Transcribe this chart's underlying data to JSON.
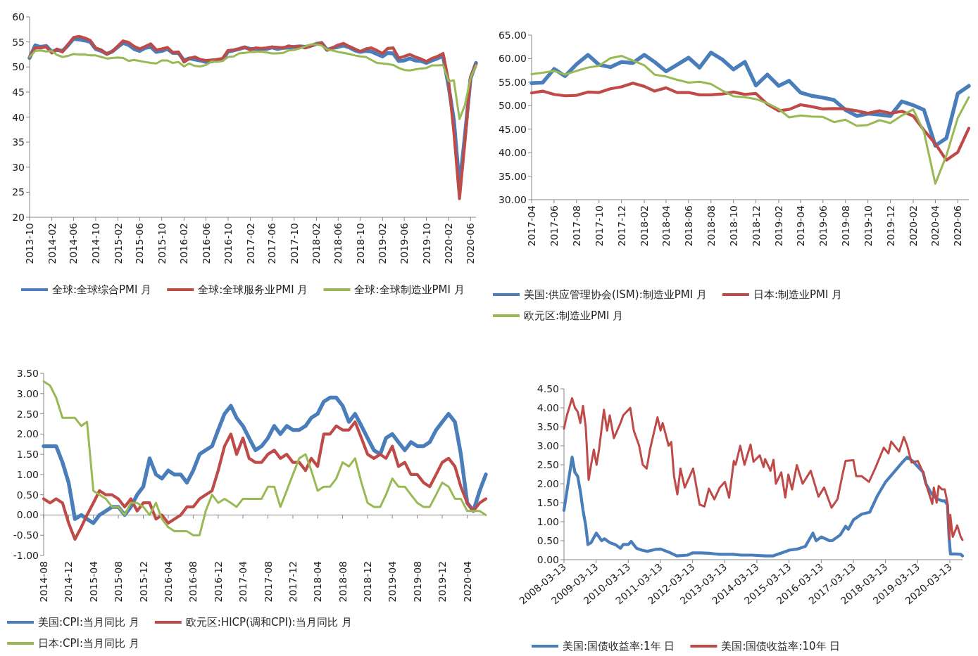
{
  "chart_data": [
    {
      "type": "line",
      "legend": "bottom",
      "x": [
        "2013-10",
        "2013-11",
        "2013-12",
        "2014-01",
        "2014-02",
        "2014-03",
        "2014-04",
        "2014-05",
        "2014-06",
        "2014-07",
        "2014-08",
        "2014-09",
        "2014-10",
        "2014-11",
        "2014-12",
        "2015-01",
        "2015-02",
        "2015-03",
        "2015-04",
        "2015-05",
        "2015-06",
        "2015-07",
        "2015-08",
        "2015-09",
        "2015-10",
        "2015-11",
        "2015-12",
        "2016-01",
        "2016-02",
        "2016-03",
        "2016-04",
        "2016-05",
        "2016-06",
        "2016-07",
        "2016-08",
        "2016-09",
        "2016-10",
        "2016-11",
        "2016-12",
        "2017-01",
        "2017-02",
        "2017-03",
        "2017-04",
        "2017-05",
        "2017-06",
        "2017-07",
        "2017-08",
        "2017-09",
        "2017-10",
        "2017-11",
        "2017-12",
        "2018-01",
        "2018-02",
        "2018-03",
        "2018-04",
        "2018-05",
        "2018-06",
        "2018-07",
        "2018-08",
        "2018-09",
        "2018-10",
        "2018-11",
        "2018-12",
        "2019-01",
        "2019-02",
        "2019-03",
        "2019-04",
        "2019-05",
        "2019-06",
        "2019-07",
        "2019-08",
        "2019-09",
        "2019-10",
        "2019-11",
        "2019-12",
        "2020-01",
        "2020-02",
        "2020-03",
        "2020-04",
        "2020-05",
        "2020-06",
        "2020-07"
      ],
      "xlim": [
        "2013-10",
        "2020-07"
      ],
      "xticks": [
        "2013-10",
        "2014-02",
        "2014-06",
        "2014-10",
        "2015-02",
        "2015-06",
        "2015-10",
        "2016-02",
        "2016-06",
        "2016-10",
        "2017-02",
        "2017-06",
        "2017-10",
        "2018-02",
        "2018-06",
        "2018-10",
        "2019-02",
        "2019-06",
        "2019-10",
        "2020-02",
        "2020-06"
      ],
      "ylim": [
        20,
        60
      ],
      "yticks": [
        20,
        25,
        30,
        35,
        40,
        45,
        50,
        55,
        60
      ],
      "series": [
        {
          "name": "全球:全球综合PMI 月",
          "color": "#4a7ebb",
          "values": [
            51.8,
            54.3,
            54.0,
            54.2,
            53.0,
            53.4,
            53.2,
            54.3,
            55.6,
            55.5,
            55.3,
            55.0,
            53.6,
            53.2,
            52.6,
            53.1,
            54.0,
            54.8,
            54.4,
            53.6,
            53.2,
            53.8,
            54.0,
            53.0,
            53.2,
            53.6,
            52.8,
            52.8,
            51.3,
            51.7,
            51.5,
            51.3,
            51.0,
            51.1,
            51.4,
            51.4,
            53.1,
            53.3,
            53.6,
            53.9,
            53.6,
            53.6,
            53.6,
            53.6,
            53.9,
            53.6,
            53.8,
            53.9,
            54.0,
            54.1,
            54.0,
            54.2,
            54.6,
            54.8,
            53.4,
            53.8,
            54.0,
            54.3,
            53.9,
            53.3,
            53.0,
            53.2,
            53.1,
            52.6,
            52.1,
            52.8,
            52.7,
            51.2,
            51.3,
            51.7,
            51.3,
            51.2,
            50.8,
            51.3,
            51.7,
            52.2,
            46.1,
            39.4,
            26.2,
            36.3,
            47.7,
            50.8
          ]
        },
        {
          "name": "全球:全球服务业PMI 月",
          "color": "#be4b48",
          "values": [
            52.0,
            53.8,
            53.8,
            54.0,
            52.8,
            53.6,
            53.0,
            54.5,
            55.9,
            56.1,
            55.8,
            55.3,
            53.8,
            53.4,
            52.6,
            53.1,
            54.2,
            55.2,
            54.9,
            54.1,
            53.6,
            54.1,
            54.6,
            53.4,
            53.6,
            53.9,
            52.9,
            53.0,
            51.0,
            51.7,
            52.0,
            51.5,
            51.3,
            51.4,
            51.5,
            51.7,
            53.3,
            53.4,
            53.6,
            54.0,
            53.4,
            53.8,
            53.7,
            53.8,
            54.0,
            53.9,
            53.8,
            54.2,
            54.0,
            54.1,
            53.8,
            54.2,
            54.6,
            54.8,
            53.4,
            53.8,
            54.4,
            54.7,
            54.1,
            53.6,
            53.1,
            53.6,
            53.8,
            53.3,
            52.7,
            53.7,
            53.8,
            51.8,
            52.1,
            52.5,
            52.0,
            51.6,
            51.1,
            51.7,
            52.1,
            52.7,
            47.1,
            37.0,
            23.7,
            35.1,
            48.0,
            50.5
          ]
        },
        {
          "name": "全球:全球制造业PMI 月",
          "color": "#98b954",
          "values": [
            52.0,
            53.2,
            53.3,
            53.1,
            53.2,
            52.4,
            52.0,
            52.2,
            52.6,
            52.5,
            52.5,
            52.3,
            52.3,
            52.0,
            51.7,
            51.8,
            51.9,
            51.8,
            51.2,
            51.4,
            51.2,
            51.0,
            50.8,
            50.7,
            51.3,
            51.3,
            50.8,
            51.0,
            50.1,
            50.7,
            50.2,
            50.1,
            50.4,
            51.1,
            51.0,
            51.2,
            52.0,
            52.1,
            52.7,
            52.8,
            53.0,
            53.0,
            53.1,
            52.9,
            52.7,
            52.7,
            52.8,
            53.3,
            53.4,
            53.7,
            54.1,
            54.5,
            54.5,
            54.3,
            53.5,
            53.3,
            53.0,
            52.8,
            52.6,
            52.3,
            52.1,
            52.0,
            51.4,
            50.8,
            50.7,
            50.6,
            50.4,
            49.8,
            49.4,
            49.3,
            49.5,
            49.7,
            49.8,
            50.3,
            50.3,
            50.4,
            47.2,
            47.3,
            39.6,
            42.4,
            47.8,
            50.3
          ]
        }
      ]
    },
    {
      "type": "line",
      "legend": "bottom",
      "x": [
        "2017-04",
        "2017-05",
        "2017-06",
        "2017-07",
        "2017-08",
        "2017-09",
        "2017-10",
        "2017-11",
        "2017-12",
        "2018-01",
        "2018-02",
        "2018-03",
        "2018-04",
        "2018-05",
        "2018-06",
        "2018-07",
        "2018-08",
        "2018-09",
        "2018-10",
        "2018-11",
        "2018-12",
        "2019-01",
        "2019-02",
        "2019-03",
        "2019-04",
        "2019-05",
        "2019-06",
        "2019-07",
        "2019-08",
        "2019-09",
        "2019-10",
        "2019-11",
        "2019-12",
        "2020-01",
        "2020-02",
        "2020-03",
        "2020-04",
        "2020-05",
        "2020-06",
        "2020-07"
      ],
      "xlim": [
        "2017-04",
        "2020-07"
      ],
      "xticks": [
        "2017-04",
        "2017-06",
        "2017-08",
        "2017-10",
        "2017-12",
        "2018-02",
        "2018-04",
        "2018-06",
        "2018-08",
        "2018-10",
        "2018-12",
        "2019-02",
        "2019-04",
        "2019-06",
        "2019-08",
        "2019-10",
        "2019-12",
        "2020-02",
        "2020-04",
        "2020-06"
      ],
      "ylim": [
        30,
        65
      ],
      "yticks": [
        {
          "value": 30,
          "label": "30.00"
        },
        {
          "value": 35,
          "label": "35.00"
        },
        {
          "value": 40,
          "label": "40.00"
        },
        {
          "value": 45,
          "label": "45.00"
        },
        {
          "value": 50,
          "label": "50.00"
        },
        {
          "value": 55,
          "label": "55.00"
        },
        {
          "value": 60,
          "label": "60.00"
        },
        {
          "value": 65,
          "label": "65.00"
        }
      ],
      "series": [
        {
          "name": "美国:供应管理协会(ISM):制造业PMI 月",
          "color": "#4a7ebb",
          "values": [
            54.8,
            54.9,
            57.8,
            56.3,
            58.8,
            60.8,
            58.7,
            58.2,
            59.3,
            59.1,
            60.8,
            59.3,
            57.3,
            58.7,
            60.2,
            58.1,
            61.3,
            59.8,
            57.7,
            59.3,
            54.3,
            56.6,
            54.2,
            55.3,
            52.8,
            52.1,
            51.7,
            51.2,
            49.1,
            47.8,
            48.3,
            48.1,
            47.8,
            50.9,
            50.1,
            49.1,
            41.5,
            43.1,
            52.6,
            54.2
          ]
        },
        {
          "name": "日本:制造业PMI 月",
          "color": "#be4b48",
          "values": [
            52.7,
            53.1,
            52.4,
            52.1,
            52.2,
            52.9,
            52.8,
            53.6,
            54.0,
            54.8,
            54.1,
            53.1,
            53.8,
            52.8,
            52.8,
            52.3,
            52.3,
            52.5,
            52.9,
            52.4,
            52.6,
            50.3,
            48.9,
            49.2,
            50.2,
            49.8,
            49.3,
            49.4,
            49.3,
            48.9,
            48.4,
            48.9,
            48.4,
            48.8,
            47.8,
            44.8,
            41.9,
            38.4,
            40.1,
            45.2
          ]
        },
        {
          "name": "欧元区:制造业PMI 月",
          "color": "#98b954",
          "values": [
            56.7,
            57.0,
            57.4,
            56.6,
            57.4,
            58.1,
            58.5,
            60.1,
            60.6,
            59.6,
            58.6,
            56.6,
            56.2,
            55.5,
            54.9,
            55.1,
            54.6,
            53.2,
            52.0,
            51.8,
            51.4,
            50.5,
            49.3,
            47.5,
            47.9,
            47.7,
            47.6,
            46.5,
            47.0,
            45.7,
            45.9,
            46.9,
            46.3,
            47.9,
            49.2,
            44.5,
            33.4,
            39.4,
            47.4,
            51.8
          ]
        }
      ]
    },
    {
      "type": "line",
      "legend": "bottom",
      "x": [
        "2014-08",
        "2014-09",
        "2014-10",
        "2014-11",
        "2014-12",
        "2015-01",
        "2015-02",
        "2015-03",
        "2015-04",
        "2015-05",
        "2015-06",
        "2015-07",
        "2015-08",
        "2015-09",
        "2015-10",
        "2015-11",
        "2015-12",
        "2016-01",
        "2016-02",
        "2016-03",
        "2016-04",
        "2016-05",
        "2016-06",
        "2016-07",
        "2016-08",
        "2016-09",
        "2016-10",
        "2016-11",
        "2016-12",
        "2017-01",
        "2017-02",
        "2017-03",
        "2017-04",
        "2017-05",
        "2017-06",
        "2017-07",
        "2017-08",
        "2017-09",
        "2017-10",
        "2017-11",
        "2017-12",
        "2018-01",
        "2018-02",
        "2018-03",
        "2018-04",
        "2018-05",
        "2018-06",
        "2018-07",
        "2018-08",
        "2018-09",
        "2018-10",
        "2018-11",
        "2018-12",
        "2019-01",
        "2019-02",
        "2019-03",
        "2019-04",
        "2019-05",
        "2019-06",
        "2019-07",
        "2019-08",
        "2019-09",
        "2019-10",
        "2019-11",
        "2019-12",
        "2020-01",
        "2020-02",
        "2020-03",
        "2020-04",
        "2020-05",
        "2020-06",
        "2020-07"
      ],
      "xlim": [
        "2014-08",
        "2020-07"
      ],
      "xticks": [
        "2014-08",
        "2014-12",
        "2015-04",
        "2015-08",
        "2015-12",
        "2016-04",
        "2016-08",
        "2016-12",
        "2017-04",
        "2017-08",
        "2017-12",
        "2018-04",
        "2018-08",
        "2018-12",
        "2019-04",
        "2019-08",
        "2019-12",
        "2020-04"
      ],
      "ylim": [
        -1,
        3.5
      ],
      "yticks": [
        {
          "value": -1,
          "label": "-1.00"
        },
        {
          "value": -0.5,
          "label": "-0.50"
        },
        {
          "value": 0,
          "label": "0.00"
        },
        {
          "value": 0.5,
          "label": "0.50"
        },
        {
          "value": 1,
          "label": "1.00"
        },
        {
          "value": 1.5,
          "label": "1.50"
        },
        {
          "value": 2,
          "label": "2.00"
        },
        {
          "value": 2.5,
          "label": "2.50"
        },
        {
          "value": 3,
          "label": "3.00"
        },
        {
          "value": 3.5,
          "label": "3.50"
        }
      ],
      "series": [
        {
          "name": "美国:CPI:当月同比 月",
          "color": "#4a7ebb",
          "values": [
            1.7,
            1.7,
            1.7,
            1.3,
            0.8,
            -0.1,
            0.0,
            -0.1,
            -0.2,
            0.0,
            0.1,
            0.2,
            0.2,
            0.0,
            0.2,
            0.5,
            0.7,
            1.4,
            1.0,
            0.9,
            1.1,
            1.0,
            1.0,
            0.8,
            1.1,
            1.5,
            1.6,
            1.7,
            2.1,
            2.5,
            2.7,
            2.4,
            2.2,
            1.9,
            1.6,
            1.7,
            1.9,
            2.2,
            2.0,
            2.2,
            2.1,
            2.1,
            2.2,
            2.4,
            2.5,
            2.8,
            2.9,
            2.9,
            2.7,
            2.3,
            2.5,
            2.2,
            1.9,
            1.6,
            1.5,
            1.9,
            2.0,
            1.8,
            1.6,
            1.8,
            1.7,
            1.7,
            1.8,
            2.1,
            2.3,
            2.5,
            2.3,
            1.5,
            0.3,
            0.1,
            0.6,
            1.0
          ]
        },
        {
          "name": "欧元区:HICP(调和CPI):当月同比 月",
          "color": "#be4b48",
          "values": [
            0.4,
            0.3,
            0.4,
            0.3,
            -0.2,
            -0.6,
            -0.3,
            0.0,
            0.3,
            0.6,
            0.5,
            0.5,
            0.4,
            0.2,
            0.4,
            0.1,
            0.3,
            0.3,
            -0.1,
            0.0,
            -0.2,
            -0.1,
            0.0,
            0.2,
            0.2,
            0.4,
            0.5,
            0.6,
            1.1,
            1.7,
            2.0,
            1.5,
            1.9,
            1.4,
            1.3,
            1.3,
            1.5,
            1.6,
            1.4,
            1.5,
            1.3,
            1.3,
            1.1,
            1.4,
            1.2,
            2.0,
            2.0,
            2.2,
            2.1,
            2.1,
            2.3,
            1.9,
            1.5,
            1.4,
            1.5,
            1.4,
            1.7,
            1.2,
            1.3,
            1.0,
            1.0,
            0.8,
            0.7,
            1.0,
            1.3,
            1.4,
            1.2,
            0.7,
            0.3,
            0.1,
            0.3,
            0.4
          ]
        },
        {
          "name": "日本:CPI:当月同比 月",
          "color": "#98b954",
          "values": [
            3.3,
            3.2,
            2.9,
            2.4,
            2.4,
            2.4,
            2.2,
            2.3,
            0.6,
            0.5,
            0.4,
            0.2,
            0.2,
            0.0,
            0.3,
            0.3,
            0.2,
            0.0,
            0.3,
            -0.1,
            -0.3,
            -0.4,
            -0.4,
            -0.4,
            -0.5,
            -0.5,
            0.1,
            0.5,
            0.3,
            0.4,
            0.3,
            0.2,
            0.4,
            0.4,
            0.4,
            0.4,
            0.7,
            0.7,
            0.2,
            0.6,
            1.0,
            1.4,
            1.5,
            1.1,
            0.6,
            0.7,
            0.7,
            0.9,
            1.3,
            1.2,
            1.4,
            0.8,
            0.3,
            0.2,
            0.2,
            0.5,
            0.9,
            0.7,
            0.7,
            0.5,
            0.3,
            0.2,
            0.2,
            0.5,
            0.8,
            0.7,
            0.4,
            0.4,
            0.1,
            0.1,
            0.1,
            0.0
          ]
        }
      ]
    },
    {
      "type": "line",
      "legend": "bottom",
      "xlim": [
        "2008-03-13",
        "2020-08-04"
      ],
      "xticks": [
        "2008-03-13",
        "2009-03-13",
        "2010-03-13",
        "2011-03-13",
        "2012-03-13",
        "2013-03-13",
        "2014-03-13",
        "2015-03-13",
        "2016-03-13",
        "2017-03-13",
        "2018-03-13",
        "2019-03-13",
        "2020-03-13"
      ],
      "ylim": [
        0,
        4.5
      ],
      "yticks": [
        {
          "value": 0,
          "label": "0.00"
        },
        {
          "value": 0.5,
          "label": "0.50"
        },
        {
          "value": 1,
          "label": "1.00"
        },
        {
          "value": 1.5,
          "label": "1.50"
        },
        {
          "value": 2,
          "label": "2.00"
        },
        {
          "value": 2.5,
          "label": "2.50"
        },
        {
          "value": 3,
          "label": "3.00"
        },
        {
          "value": 3.5,
          "label": "3.50"
        },
        {
          "value": 4,
          "label": "4.00"
        },
        {
          "value": 4.5,
          "label": "4.50"
        }
      ],
      "series": [
        {
          "name": "美国:国债收益率:1年 日",
          "color": "#4a7ebb",
          "x": [
            "2008-03-13",
            "2008-04-15",
            "2008-06-13",
            "2008-07-15",
            "2008-08-15",
            "2008-09-15",
            "2008-10-15",
            "2008-11-15",
            "2008-12-10",
            "2009-01-15",
            "2009-03-15",
            "2009-05-15",
            "2009-06-15",
            "2009-08-15",
            "2009-10-15",
            "2009-12-15",
            "2010-01-15",
            "2010-03-15",
            "2010-04-15",
            "2010-06-15",
            "2010-08-15",
            "2010-10-15",
            "2011-01-15",
            "2011-03-15",
            "2011-06-15",
            "2011-09-15",
            "2012-01-15",
            "2012-03-15",
            "2012-06-15",
            "2012-09-15",
            "2013-01-15",
            "2013-06-15",
            "2013-09-15",
            "2014-01-15",
            "2014-06-15",
            "2014-09-15",
            "2015-01-15",
            "2015-03-15",
            "2015-06-15",
            "2015-09-15",
            "2015-12-10",
            "2016-01-15",
            "2016-03-15",
            "2016-06-15",
            "2016-07-15",
            "2016-10-15",
            "2016-12-15",
            "2017-01-15",
            "2017-03-15",
            "2017-06-15",
            "2017-09-15",
            "2017-12-15",
            "2018-03-15",
            "2018-06-15",
            "2018-09-15",
            "2018-11-15",
            "2019-01-15",
            "2019-03-15",
            "2019-05-15",
            "2019-06-15",
            "2019-08-15",
            "2019-10-15",
            "2019-12-15",
            "2020-01-15",
            "2020-02-15",
            "2020-03-04",
            "2020-03-20",
            "2020-05-15",
            "2020-07-15",
            "2020-08-04"
          ],
          "values": [
            1.3,
            1.8,
            2.7,
            2.3,
            2.2,
            1.8,
            1.3,
            0.9,
            0.4,
            0.45,
            0.7,
            0.5,
            0.55,
            0.45,
            0.4,
            0.3,
            0.4,
            0.4,
            0.48,
            0.3,
            0.25,
            0.22,
            0.27,
            0.28,
            0.2,
            0.1,
            0.12,
            0.18,
            0.18,
            0.17,
            0.14,
            0.14,
            0.12,
            0.12,
            0.1,
            0.1,
            0.2,
            0.25,
            0.28,
            0.35,
            0.7,
            0.5,
            0.6,
            0.5,
            0.5,
            0.65,
            0.88,
            0.8,
            1.05,
            1.2,
            1.25,
            1.7,
            2.05,
            2.3,
            2.55,
            2.7,
            2.6,
            2.45,
            2.3,
            2.0,
            1.75,
            1.6,
            1.55,
            1.55,
            1.45,
            0.6,
            0.15,
            0.15,
            0.14,
            0.1
          ]
        },
        {
          "name": "美国:国债收益率:10年 日",
          "color": "#be4b48",
          "x": [
            "2008-03-13",
            "2008-04-15",
            "2008-06-13",
            "2008-07-15",
            "2008-08-15",
            "2008-09-15",
            "2008-10-15",
            "2008-11-15",
            "2008-12-18",
            "2009-01-15",
            "2009-02-15",
            "2009-03-18",
            "2009-04-15",
            "2009-06-10",
            "2009-07-15",
            "2009-08-15",
            "2009-10-01",
            "2009-12-15",
            "2010-01-15",
            "2010-04-05",
            "2010-05-15",
            "2010-07-15",
            "2010-08-25",
            "2010-10-08",
            "2010-11-15",
            "2011-02-08",
            "2011-03-15",
            "2011-04-08",
            "2011-06-15",
            "2011-07-15",
            "2011-08-15",
            "2011-09-22",
            "2011-10-27",
            "2011-12-15",
            "2012-03-19",
            "2012-06-01",
            "2012-07-25",
            "2012-09-14",
            "2012-11-15",
            "2013-01-15",
            "2013-03-15",
            "2013-05-02",
            "2013-06-24",
            "2013-07-15",
            "2013-09-05",
            "2013-10-23",
            "2013-12-31",
            "2014-02-03",
            "2014-04-15",
            "2014-05-28",
            "2014-06-15",
            "2014-08-15",
            "2014-09-18",
            "2014-10-15",
            "2014-12-15",
            "2015-01-30",
            "2015-03-06",
            "2015-04-17",
            "2015-06-10",
            "2015-08-15",
            "2015-11-15",
            "2016-02-11",
            "2016-04-15",
            "2016-07-08",
            "2016-09-15",
            "2016-11-15",
            "2016-12-15",
            "2017-03-13",
            "2017-04-15",
            "2017-06-15",
            "2017-09-07",
            "2017-11-15",
            "2018-02-21",
            "2018-04-15",
            "2018-05-17",
            "2018-08-15",
            "2018-10-08",
            "2018-11-15",
            "2019-01-03",
            "2019-03-15",
            "2019-05-15",
            "2019-06-15",
            "2019-08-27",
            "2019-09-13",
            "2019-10-15",
            "2019-11-07",
            "2019-12-15",
            "2020-01-15",
            "2020-02-15",
            "2020-03-09",
            "2020-03-18",
            "2020-04-15",
            "2020-06-05",
            "2020-07-15",
            "2020-08-04"
          ],
          "values": [
            3.45,
            3.8,
            4.25,
            4.0,
            3.9,
            3.6,
            4.05,
            3.5,
            2.1,
            2.5,
            2.9,
            2.5,
            2.9,
            3.95,
            3.4,
            3.8,
            3.2,
            3.6,
            3.8,
            4.0,
            3.4,
            3.0,
            2.5,
            2.4,
            2.9,
            3.75,
            3.4,
            3.6,
            3.0,
            3.1,
            2.2,
            1.72,
            2.4,
            1.9,
            2.4,
            1.45,
            1.4,
            1.87,
            1.59,
            1.9,
            2.05,
            1.63,
            2.6,
            2.5,
            3.0,
            2.5,
            3.03,
            2.58,
            2.75,
            2.44,
            2.65,
            2.34,
            2.63,
            2.0,
            2.3,
            1.64,
            2.24,
            1.85,
            2.49,
            2.0,
            2.34,
            1.66,
            1.9,
            1.37,
            1.6,
            2.3,
            2.6,
            2.62,
            2.2,
            2.2,
            2.05,
            2.4,
            2.95,
            2.8,
            3.11,
            2.85,
            3.23,
            3.0,
            2.56,
            2.6,
            2.3,
            2.0,
            1.47,
            1.9,
            1.5,
            1.94,
            1.85,
            1.85,
            1.5,
            0.54,
            1.18,
            0.6,
            0.9,
            0.6,
            0.52
          ]
        }
      ]
    }
  ]
}
